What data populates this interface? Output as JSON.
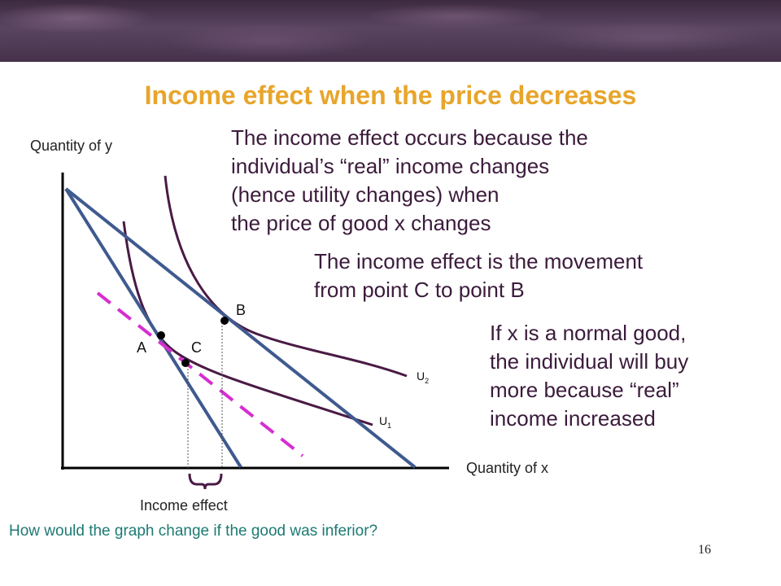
{
  "title": "Income effect when the price decreases",
  "y_axis_label": "Quantity of y",
  "x_axis_label": "Quantity of x",
  "paragraph1": [
    "The income effect occurs because the",
    "individual’s “real” income changes",
    "(hence utility changes) when",
    "the price of good x changes"
  ],
  "paragraph2": [
    "The income effect is the movement",
    "from point C to point B"
  ],
  "paragraph3": [
    "If x is a normal good,",
    "the individual will buy",
    "more because “real”",
    "income increased"
  ],
  "points": {
    "a": "A",
    "b": "B",
    "c": "C"
  },
  "curves": {
    "u1": "U",
    "u1_sub": "1",
    "u2": "U",
    "u2_sub": "2"
  },
  "brace_label": "Income effect",
  "question": "How would the graph change if the good was inferior?",
  "page_number": "16",
  "colors": {
    "title": "#e8a52b",
    "body_text": "#3b1b3b",
    "budget_line": "#3f5a8f",
    "indifference_curve": "#4a1a45",
    "shifted_budget": "#d62ed1",
    "question": "#1c7a73"
  }
}
